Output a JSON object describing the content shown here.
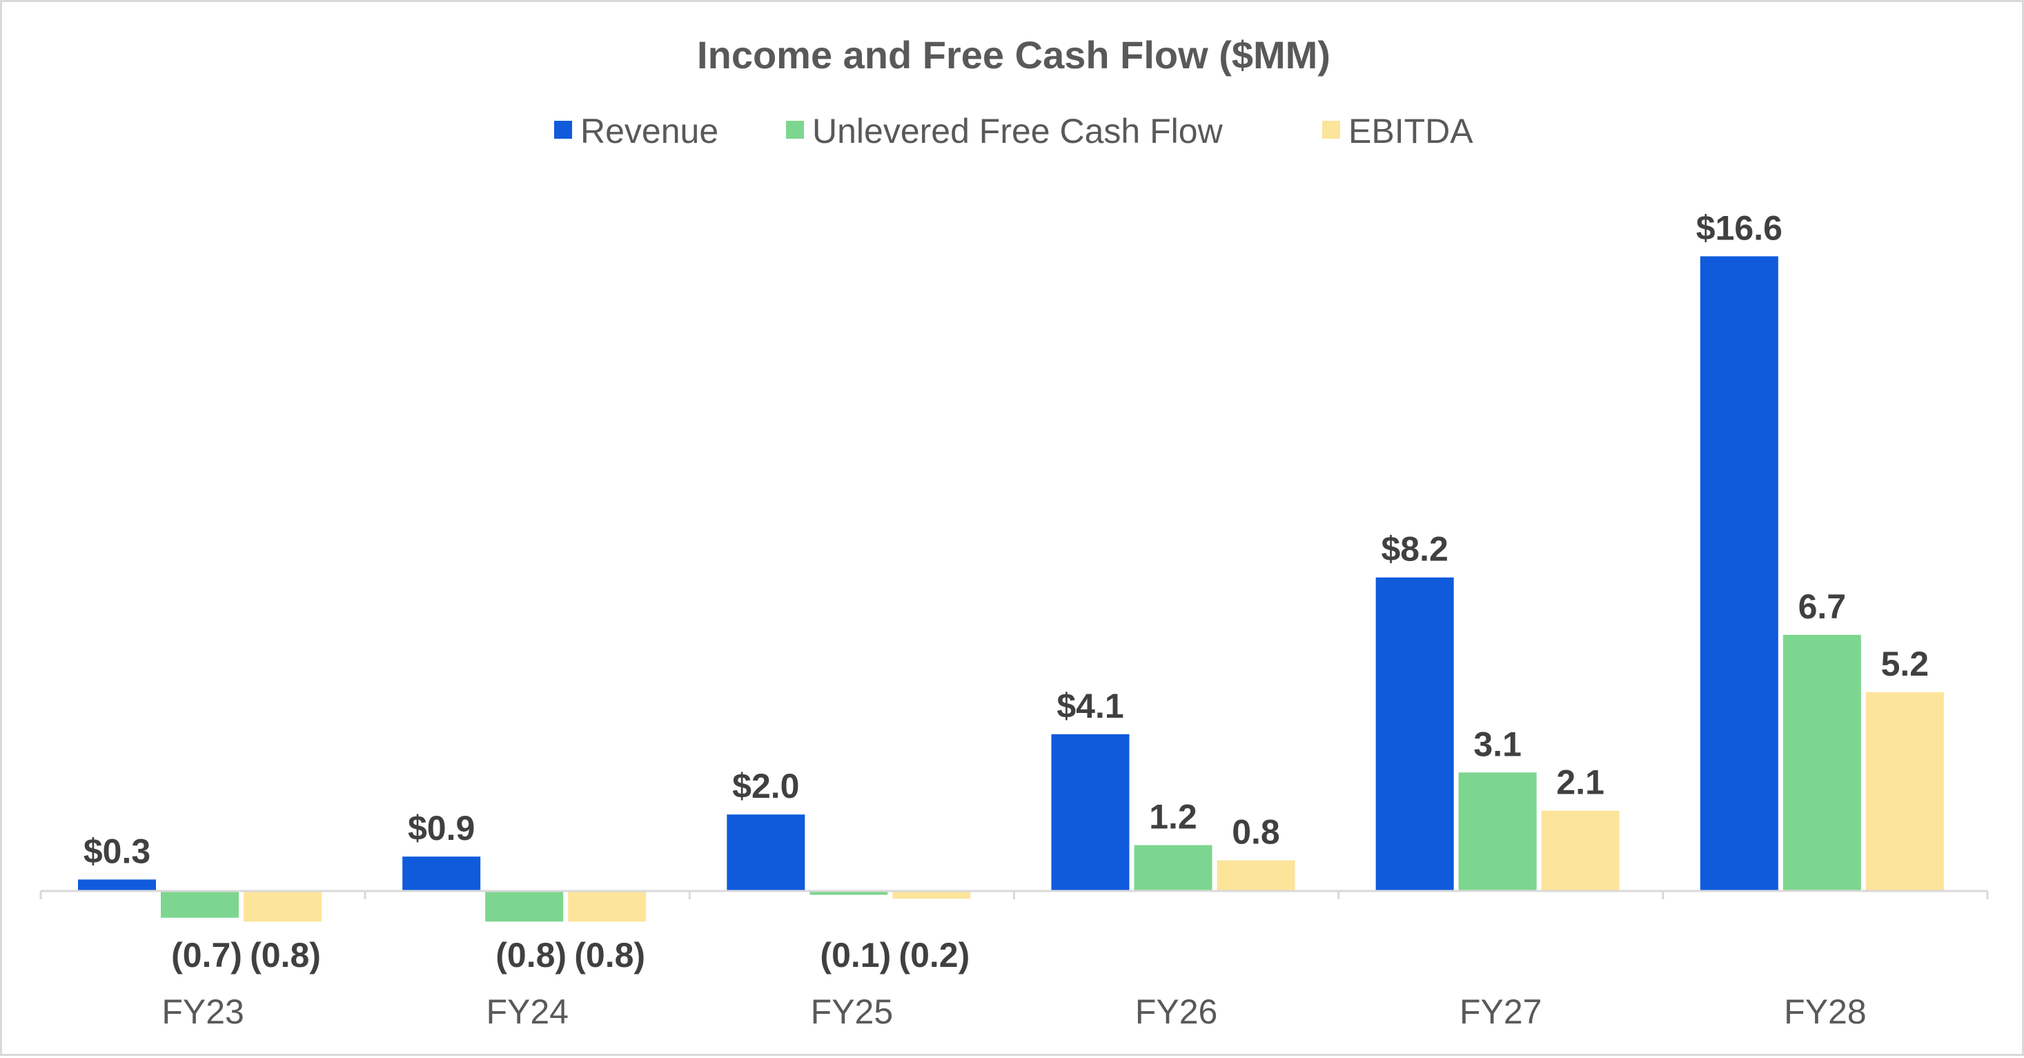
{
  "chart_data": {
    "type": "bar",
    "title": "Income and Free Cash Flow ($MM)",
    "xlabel": "",
    "ylabel": "",
    "categories": [
      "FY23",
      "FY24",
      "FY25",
      "FY26",
      "FY27",
      "FY28"
    ],
    "series": [
      {
        "name": "Revenue",
        "color": "#0f5bdc",
        "values": [
          0.3,
          0.9,
          2.0,
          4.1,
          8.2,
          16.6
        ],
        "labels": [
          "$0.3",
          "$0.9",
          "$2.0",
          "$4.1",
          "$8.2",
          "$16.6"
        ]
      },
      {
        "name": "Unlevered Free Cash Flow",
        "color": "#7dd68f",
        "values": [
          -0.7,
          -0.8,
          -0.1,
          1.2,
          3.1,
          6.7
        ],
        "labels": [
          "(0.7)",
          "(0.8)",
          "(0.1)",
          "1.2",
          "3.1",
          "6.7"
        ]
      },
      {
        "name": "EBITDA",
        "color": "#fce49a",
        "values": [
          -0.8,
          -0.8,
          -0.2,
          0.8,
          2.1,
          5.2
        ],
        "labels": [
          "(0.8)",
          "(0.8)",
          "(0.2)",
          "0.8",
          "2.1",
          "5.2"
        ]
      }
    ],
    "legend_position": "top",
    "grid": false
  }
}
